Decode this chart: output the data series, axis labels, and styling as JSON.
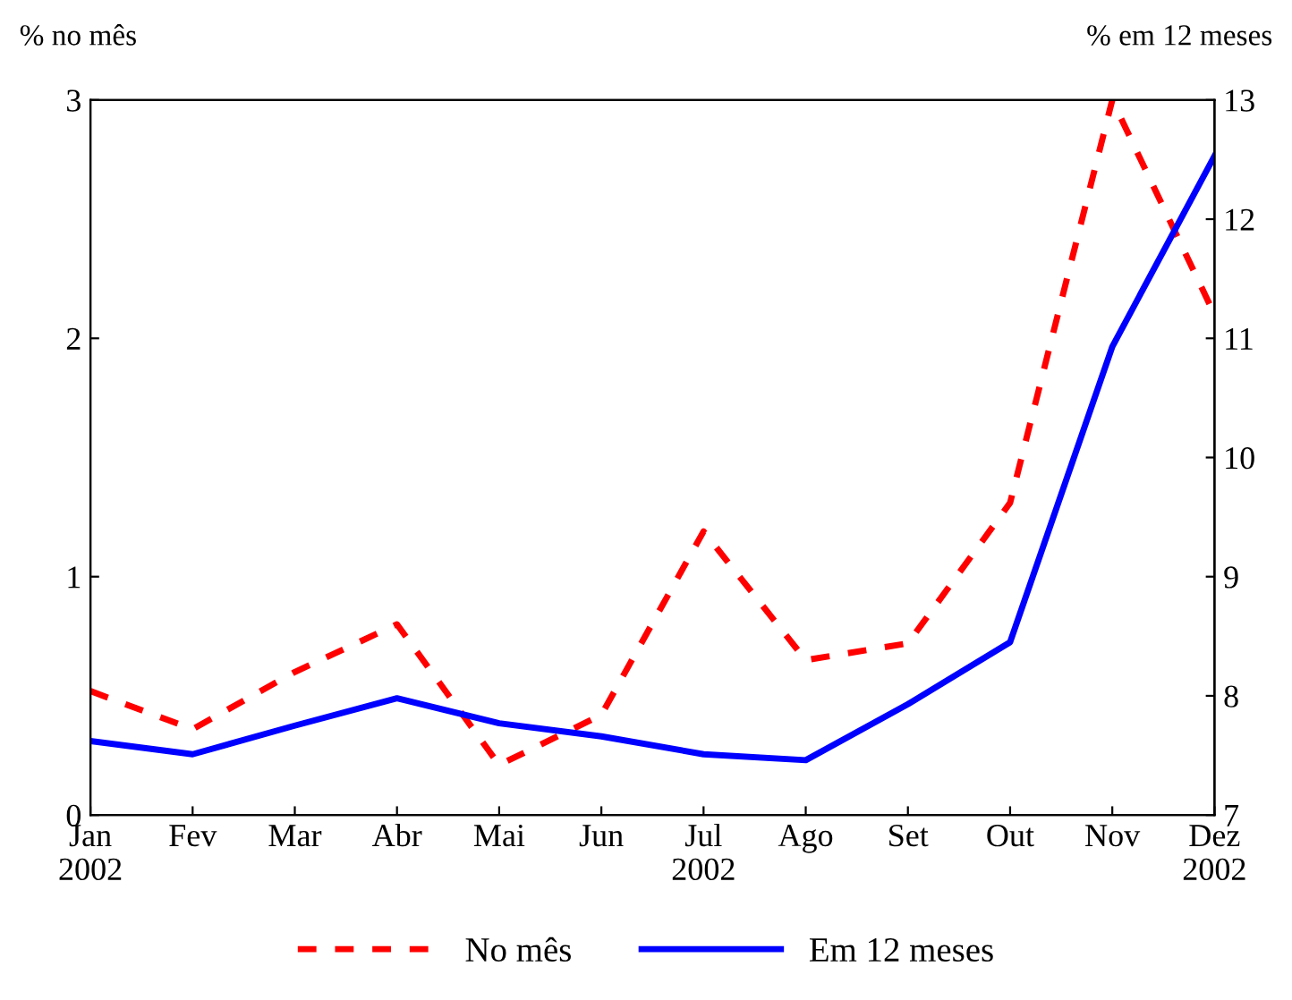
{
  "chart_data": {
    "type": "line",
    "ylabel": "% no mês",
    "y2label": "% em 12 meses",
    "categories": [
      "Jan\n2002",
      "Fev",
      "Mar",
      "Abr",
      "Mai",
      "Jun",
      "Jul\n2002",
      "Ago",
      "Set",
      "Out",
      "Nov",
      "Dez\n2002"
    ],
    "series": [
      {
        "name": "No mês",
        "color": "#ff0000",
        "line_style": "dashed",
        "values": [
          0.52,
          0.36,
          0.6,
          0.8,
          0.21,
          0.42,
          1.19,
          0.65,
          0.72,
          1.31,
          3.0,
          2.1
        ]
      },
      {
        "name": "Em 12 meses",
        "color": "#0000ff",
        "line_style": "solid",
        "axis": "y2",
        "values": [
          7.62,
          7.51,
          7.75,
          7.98,
          7.77,
          7.66,
          7.51,
          7.46,
          7.93,
          8.45,
          10.93,
          12.53
        ]
      }
    ],
    "ylim": [
      0,
      3
    ],
    "yticks": [
      0,
      1,
      2,
      3
    ],
    "y2lim": [
      7,
      13
    ],
    "y2ticks": [
      7,
      8,
      9,
      10,
      11,
      12,
      13
    ],
    "legend": "bottom",
    "grid": false,
    "marker": "none"
  }
}
